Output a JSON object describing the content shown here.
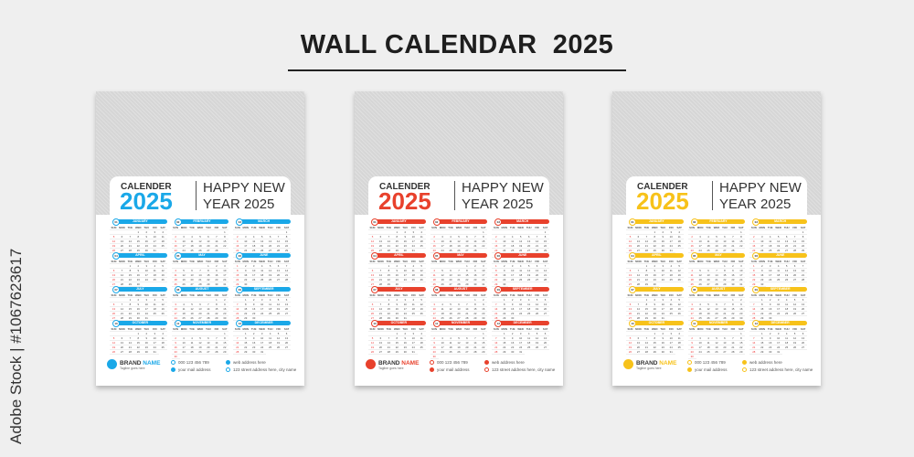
{
  "title": "WALL CALENDAR  2025",
  "watermark": "Adobe Stock | #1067623617",
  "year": 2025,
  "weekdays": [
    "SUN",
    "MON",
    "TUE",
    "WED",
    "THU",
    "FRI",
    "SAT"
  ],
  "months": [
    "JANUARY",
    "FEBRUARY",
    "MARCH",
    "APRIL",
    "MAY",
    "JUNE",
    "JULY",
    "AUGUST",
    "SEPTEMBER",
    "OCTOBER",
    "NOVEMBER",
    "DECEMBER"
  ],
  "month_numbers": [
    "01",
    "02",
    "03",
    "04",
    "05",
    "06",
    "07",
    "08",
    "09",
    "10",
    "11",
    "12"
  ],
  "header": {
    "label": "CALENDER",
    "year": "2025",
    "greeting": "HAPPY NEW YEAR 2025"
  },
  "footer": {
    "brand_1": "BRAND ",
    "brand_2": "NAME",
    "tagline": "Tagline goes here",
    "phone": "000 123 456 789",
    "mail": "your mail address",
    "web": "web address here",
    "address": "123 street address here, city name"
  },
  "designs": [
    {
      "accent": "#1aa8e8"
    },
    {
      "accent": "#e8412c"
    },
    {
      "accent": "#f7c21a"
    }
  ]
}
